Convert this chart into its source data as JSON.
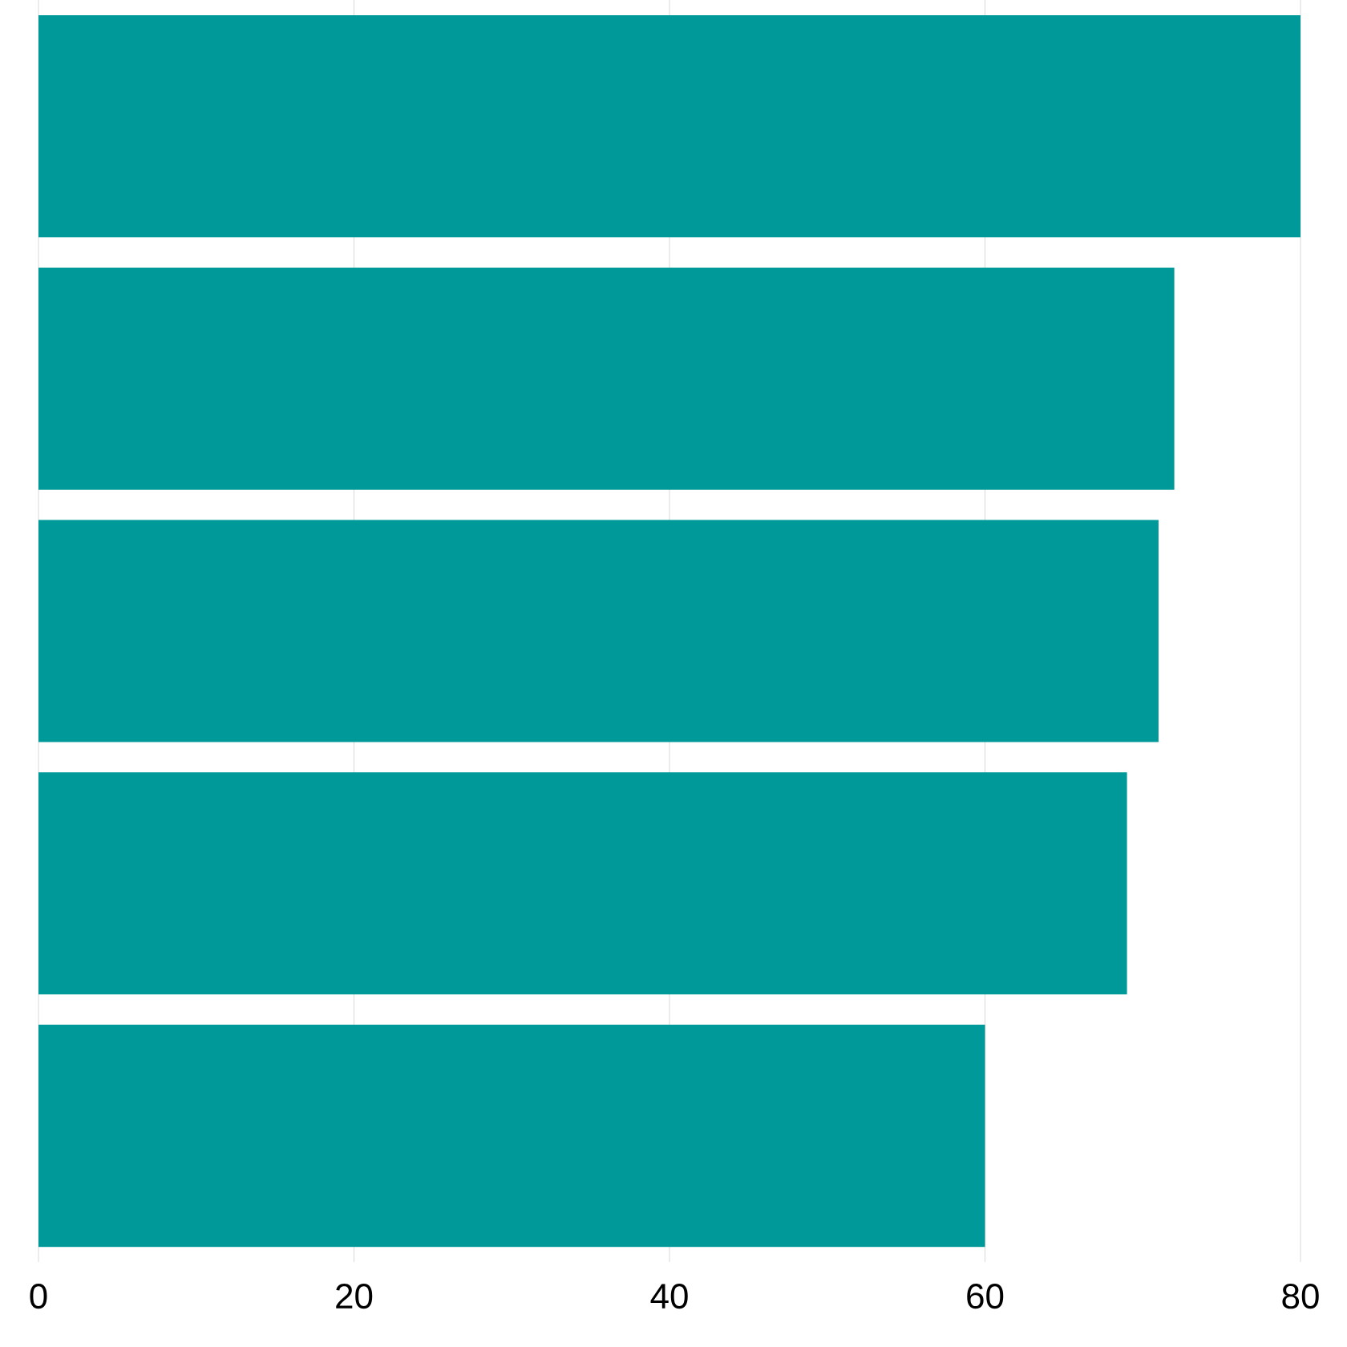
{
  "chart_data": {
    "type": "bar",
    "orientation": "horizontal",
    "categories": [
      null,
      null,
      null,
      null,
      null
    ],
    "values": [
      80,
      72,
      71,
      69,
      60
    ],
    "color": "#009999",
    "xlim": [
      0,
      80
    ],
    "xticks": [
      0,
      20,
      40,
      60,
      80
    ],
    "grid": "x"
  }
}
